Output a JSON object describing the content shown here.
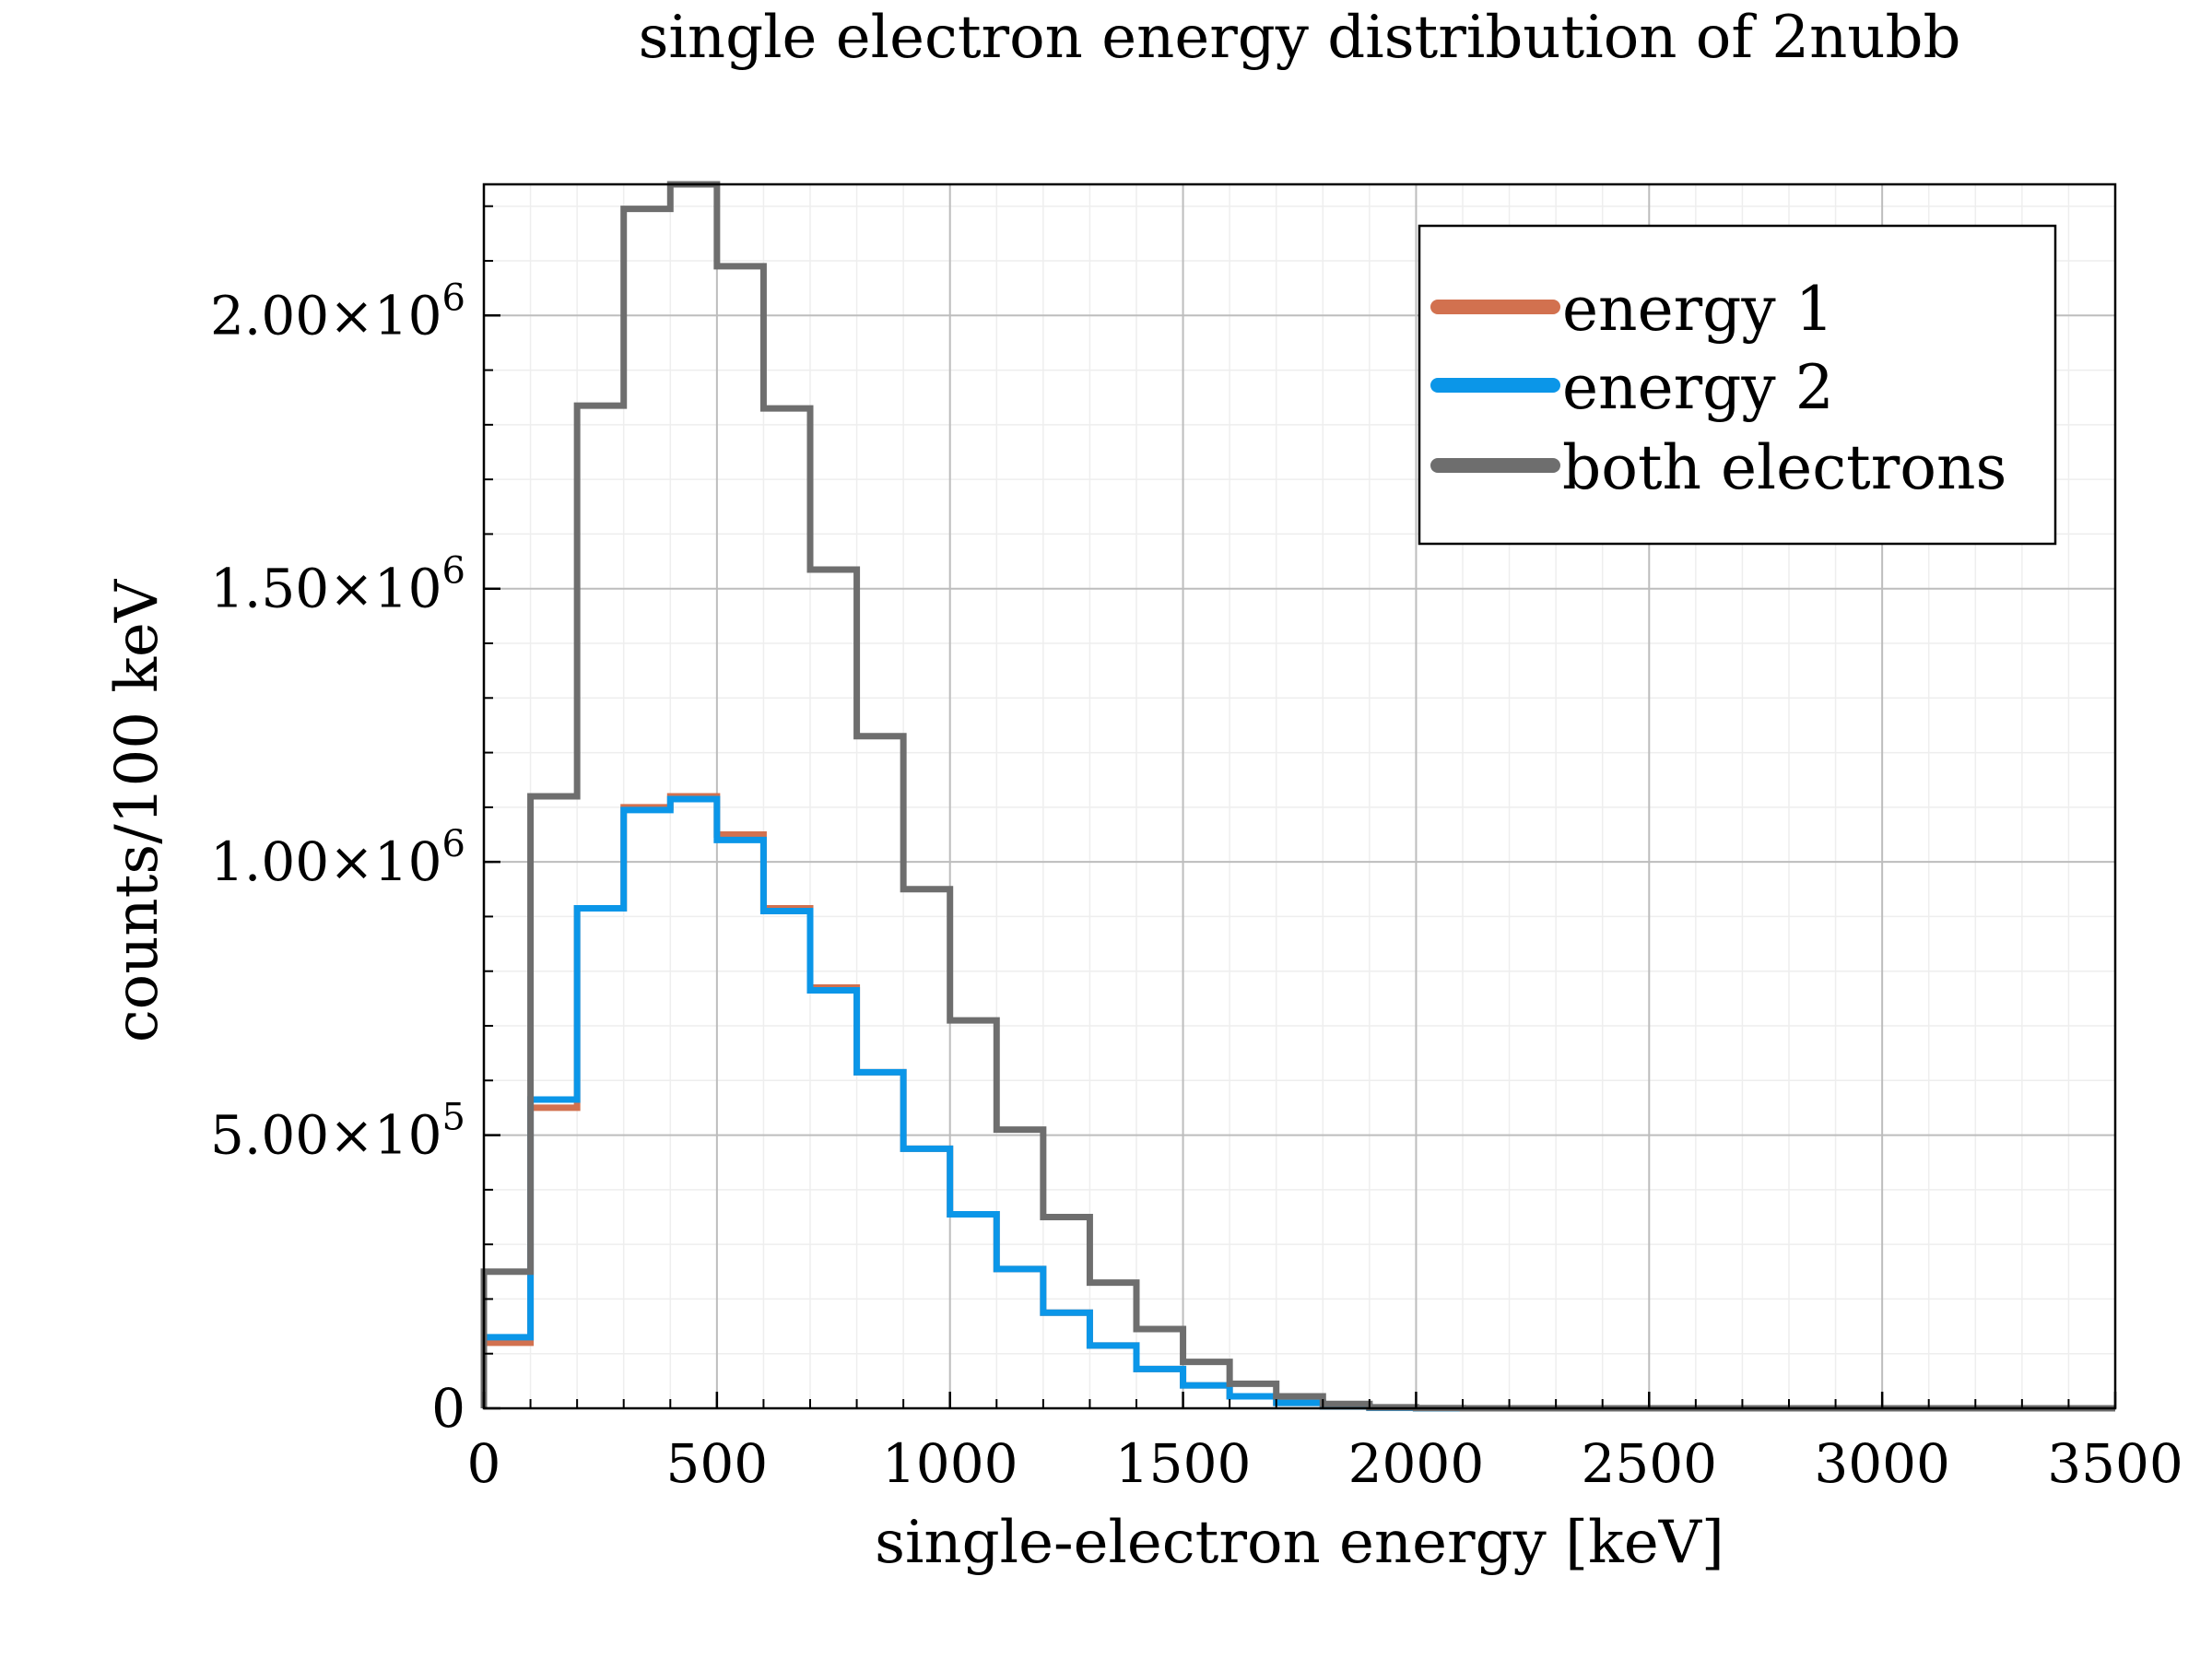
{
  "chart_data": {
    "type": "histogram",
    "title": "single electron energy distribution of 2nubb",
    "xlabel": "single-electron energy [keV]",
    "ylabel": "counts/100 keV",
    "xlim": [
      0,
      3500
    ],
    "ylim": [
      0,
      2240000
    ],
    "bin_width": 100,
    "x_ticks": [
      0,
      500,
      1000,
      1500,
      2000,
      2500,
      3000,
      3500
    ],
    "x_tick_labels": [
      "0",
      "500",
      "1000",
      "1500",
      "2000",
      "2500",
      "3000",
      "3500"
    ],
    "y_ticks": [
      {
        "value": 0,
        "mantissa": "0",
        "exponent": ""
      },
      {
        "value": 500000,
        "mantissa": "5.00×10",
        "exponent": "5"
      },
      {
        "value": 1000000,
        "mantissa": "1.00×10",
        "exponent": "6"
      },
      {
        "value": 1500000,
        "mantissa": "1.50×10",
        "exponent": "6"
      },
      {
        "value": 2000000,
        "mantissa": "2.00×10",
        "exponent": "6"
      }
    ],
    "grid": true,
    "legend_position": "top-right",
    "series": [
      {
        "name": "energy 1",
        "color": "#d2714f",
        "bin_edges": [
          0,
          100,
          200,
          300,
          400,
          500,
          600,
          700,
          800,
          900,
          1000,
          1100,
          1200,
          1300,
          1400,
          1500,
          1600,
          1700,
          1800,
          1900,
          2000,
          2100,
          2200,
          2300,
          2400,
          2500,
          2600,
          2700,
          2800,
          2900,
          3000,
          3100,
          3200,
          3300,
          3400,
          3500
        ],
        "counts": [
          120000,
          550000,
          915000,
          1100000,
          1120000,
          1050000,
          915000,
          770000,
          615000,
          475000,
          355000,
          255000,
          175000,
          115000,
          72000,
          42000,
          22000,
          10000,
          3500,
          1000,
          0,
          0,
          0,
          0,
          0,
          0,
          0,
          0,
          0,
          0,
          0,
          0,
          0,
          0,
          0
        ]
      },
      {
        "name": "energy 2",
        "color": "#0b96e8",
        "bin_edges": [
          0,
          100,
          200,
          300,
          400,
          500,
          600,
          700,
          800,
          900,
          1000,
          1100,
          1200,
          1300,
          1400,
          1500,
          1600,
          1700,
          1800,
          1900,
          2000,
          2100,
          2200,
          2300,
          2400,
          2500,
          2600,
          2700,
          2800,
          2900,
          3000,
          3100,
          3200,
          3300,
          3400,
          3500
        ],
        "counts": [
          130000,
          565000,
          915000,
          1095000,
          1115000,
          1040000,
          910000,
          765000,
          615000,
          475000,
          355000,
          255000,
          175000,
          115000,
          72000,
          42000,
          22000,
          10000,
          3500,
          1000,
          0,
          0,
          0,
          0,
          0,
          0,
          0,
          0,
          0,
          0,
          0,
          0,
          0,
          0,
          0
        ]
      },
      {
        "name": "both electrons",
        "color": "#6e6e6e",
        "bin_edges": [
          0,
          100,
          200,
          300,
          400,
          500,
          600,
          700,
          800,
          900,
          1000,
          1100,
          1200,
          1300,
          1400,
          1500,
          1600,
          1700,
          1800,
          1900,
          2000,
          2100,
          2200,
          2300,
          2400,
          2500,
          2600,
          2700,
          2800,
          2900,
          3000,
          3100,
          3200,
          3300,
          3400,
          3500
        ],
        "counts": [
          250000,
          1120000,
          1835000,
          2195000,
          2240000,
          2090000,
          1830000,
          1535000,
          1230000,
          950000,
          710000,
          510000,
          350000,
          230000,
          145000,
          85000,
          45000,
          22000,
          8000,
          2000,
          500,
          0,
          0,
          0,
          0,
          0,
          0,
          0,
          0,
          0,
          0,
          0,
          0,
          0,
          0
        ]
      }
    ]
  }
}
